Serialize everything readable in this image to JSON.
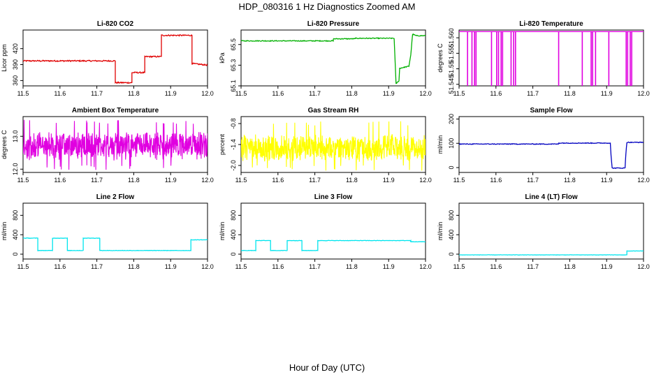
{
  "figure": {
    "title": "HDP_080316  1 Hz Diagnostics Zoomed AM",
    "xlabel": "Hour of Day (UTC)"
  },
  "chart_data": [
    {
      "type": "line",
      "title": "Li-820 CO2",
      "ylabel": "Licor ppm",
      "color": "#e00000",
      "xlim": [
        11.5,
        12.0
      ],
      "ylim": [
        350,
        455
      ],
      "yticks": [
        360,
        390,
        420
      ],
      "xticks": [
        11.5,
        11.6,
        11.7,
        11.8,
        11.9,
        12.0
      ],
      "noise": 1.2,
      "series": [
        {
          "x": [
            11.5,
            11.75,
            11.75,
            11.795,
            11.795,
            11.83,
            11.83,
            11.875,
            11.875,
            11.958,
            11.958,
            12.0
          ],
          "y": [
            397,
            397,
            356,
            356,
            375,
            375,
            405,
            405,
            445,
            445,
            392,
            389
          ]
        }
      ]
    },
    {
      "type": "line",
      "title": "Li-820 Pressure",
      "ylabel": "kPa",
      "color": "#00b000",
      "xlim": [
        11.5,
        12.0
      ],
      "ylim": [
        65.1,
        65.64
      ],
      "yticks": [
        65.1,
        65.3,
        65.5
      ],
      "xticks": [
        11.5,
        11.6,
        11.7,
        11.8,
        11.9,
        12.0
      ],
      "noise": 0.004,
      "series": [
        {
          "x": [
            11.5,
            11.75,
            11.75,
            11.81,
            11.81,
            11.915,
            11.92,
            11.928,
            11.93,
            11.955,
            11.96,
            11.965,
            11.975,
            12.0
          ],
          "y": [
            65.535,
            65.535,
            65.555,
            65.555,
            65.56,
            65.56,
            65.12,
            65.15,
            65.27,
            65.29,
            65.4,
            65.6,
            65.585,
            65.585
          ]
        }
      ]
    },
    {
      "type": "line",
      "title": "Li-820 Temperature",
      "ylabel": "degrees C",
      "color": "#e000e0",
      "xlim": [
        11.5,
        12.0
      ],
      "ylim": [
        51.5445,
        51.5625
      ],
      "yticks": [
        51.545,
        51.55,
        51.555,
        51.56
      ],
      "ytick_labels": [
        "51.545",
        "51.55",
        "51.555",
        "51.560"
      ],
      "xticks": [
        11.5,
        11.6,
        11.7,
        11.8,
        11.9,
        12.0
      ],
      "baseline": 51.562,
      "dip_to": 51.5445,
      "dips": [
        11.523,
        11.535,
        11.542,
        11.546,
        11.588,
        11.602,
        11.607,
        11.614,
        11.618,
        11.641,
        11.648,
        11.653,
        11.77,
        11.834,
        11.858,
        11.862,
        11.87,
        11.906,
        11.953,
        11.957,
        11.964,
        11.968
      ]
    },
    {
      "type": "line",
      "title": "Ambient Box Temperature",
      "ylabel": "degrees C",
      "color": "#e000e0",
      "xlim": [
        11.5,
        12.0
      ],
      "ylim": [
        11.9,
        13.6
      ],
      "yticks": [
        12.0,
        13.0
      ],
      "ytick_labels": [
        "12.0",
        "13.0"
      ],
      "xticks": [
        11.5,
        11.6,
        11.7,
        11.8,
        11.9,
        12.0
      ],
      "center": 12.7,
      "spread": 0.35,
      "spike_low": 11.96,
      "spike_high": 13.5
    },
    {
      "type": "line",
      "title": "Gas Stream RH",
      "ylabel": "percent",
      "color": "#ffff00",
      "xlim": [
        11.5,
        12.0
      ],
      "ylim": [
        -2.2,
        -0.6
      ],
      "yticks": [
        -2.0,
        -1.4,
        -0.8
      ],
      "ytick_labels": [
        "-2.0",
        "-1.4",
        "-0.8"
      ],
      "xticks": [
        11.5,
        11.6,
        11.7,
        11.8,
        11.9,
        12.0
      ],
      "center": -1.5,
      "spread": 0.32,
      "spike_low": -2.15,
      "spike_high": -0.7
    },
    {
      "type": "line",
      "title": "Sample Flow",
      "ylabel": "ml/min",
      "color": "#0000c0",
      "xlim": [
        11.5,
        12.0
      ],
      "ylim": [
        -20,
        210
      ],
      "yticks": [
        0,
        100,
        200
      ],
      "xticks": [
        11.5,
        11.6,
        11.7,
        11.8,
        11.9,
        12.0
      ],
      "noise": 1.5,
      "series": [
        {
          "x": [
            11.5,
            11.77,
            11.77,
            11.91,
            11.912,
            11.915,
            11.95,
            11.952,
            11.955,
            12.0
          ],
          "y": [
            97,
            97,
            101,
            101,
            50,
            -2,
            -2,
            55,
            104,
            104
          ]
        }
      ]
    },
    {
      "type": "line",
      "title": "Line 2 Flow",
      "ylabel": "ml/min",
      "color": "#00e5ee",
      "xlim": [
        11.5,
        12.0
      ],
      "ylim": [
        -100,
        1050
      ],
      "yticks": [
        0,
        400,
        800
      ],
      "xticks": [
        11.5,
        11.6,
        11.7,
        11.8,
        11.9,
        12.0
      ],
      "noise": 4,
      "series": [
        {
          "x": [
            11.5,
            11.54,
            11.54,
            11.58,
            11.58,
            11.62,
            11.62,
            11.663,
            11.663,
            11.708,
            11.708,
            11.955,
            11.955,
            12.0
          ],
          "y": [
            330,
            330,
            75,
            75,
            330,
            330,
            75,
            75,
            330,
            330,
            75,
            75,
            295,
            295
          ]
        }
      ]
    },
    {
      "type": "line",
      "title": "Line 3 Flow",
      "ylabel": "ml/min",
      "color": "#00e5ee",
      "xlim": [
        11.5,
        12.0
      ],
      "ylim": [
        -100,
        1050
      ],
      "yticks": [
        0,
        400,
        800
      ],
      "xticks": [
        11.5,
        11.6,
        11.7,
        11.8,
        11.9,
        12.0
      ],
      "noise": 4,
      "series": [
        {
          "x": [
            11.5,
            11.54,
            11.54,
            11.58,
            11.58,
            11.625,
            11.625,
            11.665,
            11.665,
            11.708,
            11.708,
            11.96,
            11.96,
            12.0
          ],
          "y": [
            75,
            75,
            280,
            280,
            75,
            75,
            280,
            280,
            75,
            75,
            280,
            280,
            255,
            255
          ]
        }
      ]
    },
    {
      "type": "line",
      "title": "Line 4 (LT) Flow",
      "ylabel": "ml/min",
      "color": "#00e5ee",
      "xlim": [
        11.5,
        12.0
      ],
      "ylim": [
        -100,
        1050
      ],
      "yticks": [
        0,
        400,
        800
      ],
      "xticks": [
        11.5,
        11.6,
        11.7,
        11.8,
        11.9,
        12.0
      ],
      "noise": 3,
      "series": [
        {
          "x": [
            11.5,
            11.955,
            11.955,
            12.0
          ],
          "y": [
            -15,
            -15,
            65,
            65
          ]
        }
      ]
    }
  ]
}
